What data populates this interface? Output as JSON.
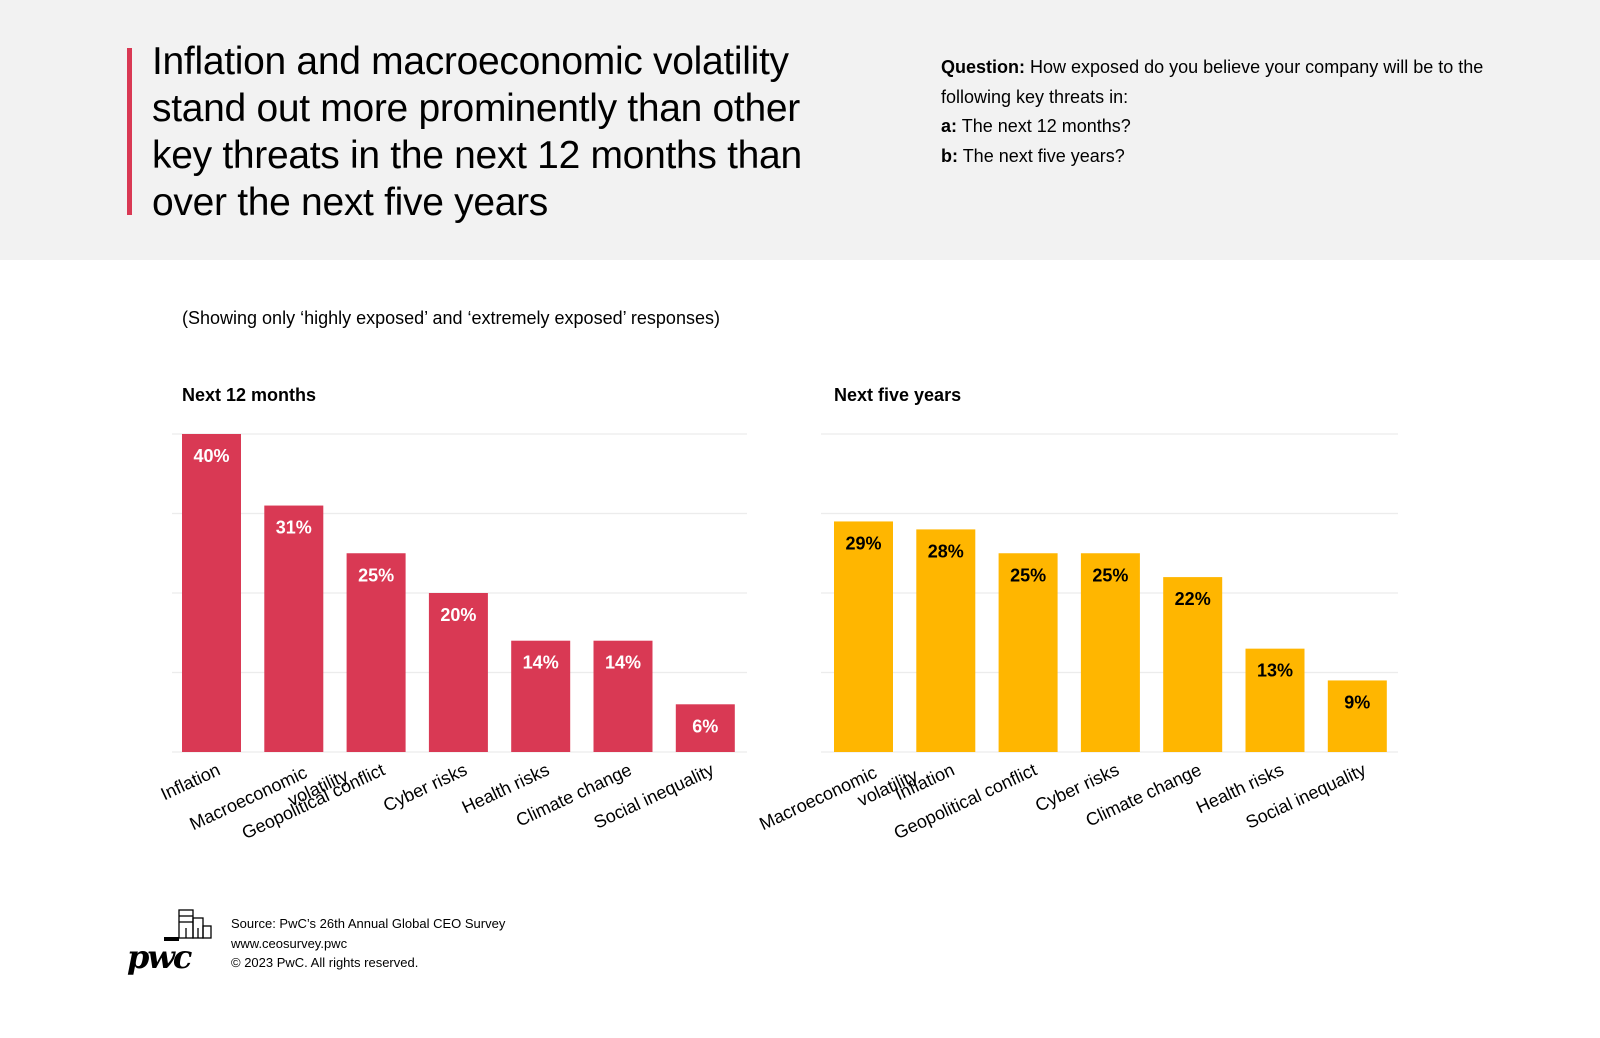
{
  "header": {
    "headline": "Inflation and macroeconomic volatility stand out more prominently than other key threats in the next 12 months than over the next five years",
    "question_label": "Question:",
    "question_text": "How exposed do you believe your company will be to the following key threats in:",
    "a_label": "a:",
    "a_text": "The next 12 months?",
    "b_label": "b:",
    "b_text": "The next five years?"
  },
  "subtitle": "(Showing only ‘highly exposed’ and ‘extremely exposed’ responses)",
  "footer": {
    "source": "Source: PwC’s 26th Annual Global CEO Survey",
    "url": "www.ceosurvey.pwc",
    "copyright": "© 2023 PwC. All rights reserved.",
    "logo_text": "pwc"
  },
  "colors": {
    "accent": "#d93954",
    "series_12m": "#d93954",
    "series_5y": "#ffb600",
    "header_bg": "#f2f2f2"
  },
  "chart_data": [
    {
      "type": "bar",
      "title": "Next 12 months",
      "categories": [
        "Inflation",
        "Macroeconomic volatility",
        "Geopolitical conflict",
        "Cyber risks",
        "Health risks",
        "Climate change",
        "Social inequality"
      ],
      "values": [
        40,
        31,
        25,
        20,
        14,
        14,
        6
      ],
      "labels": [
        "40%",
        "31%",
        "25%",
        "20%",
        "14%",
        "14%",
        "6%"
      ],
      "unit": "%",
      "xlabel": "",
      "ylabel": "",
      "ylim": [
        0,
        40
      ],
      "gridlines": [
        0,
        10,
        20,
        30,
        40
      ],
      "grid": true,
      "color": "#d93954",
      "label_color": "#ffffff"
    },
    {
      "type": "bar",
      "title": "Next five years",
      "categories": [
        "Macroeconomic volatility",
        "Inflation",
        "Geopolitical conflict",
        "Cyber risks",
        "Climate change",
        "Health risks",
        "Social inequality"
      ],
      "values": [
        29,
        28,
        25,
        25,
        22,
        13,
        9
      ],
      "labels": [
        "29%",
        "28%",
        "25%",
        "25%",
        "22%",
        "13%",
        "9%"
      ],
      "unit": "%",
      "xlabel": "",
      "ylabel": "",
      "ylim": [
        0,
        40
      ],
      "gridlines": [
        0,
        10,
        20,
        30,
        40
      ],
      "grid": true,
      "color": "#ffb600",
      "label_color": "#000000"
    }
  ]
}
